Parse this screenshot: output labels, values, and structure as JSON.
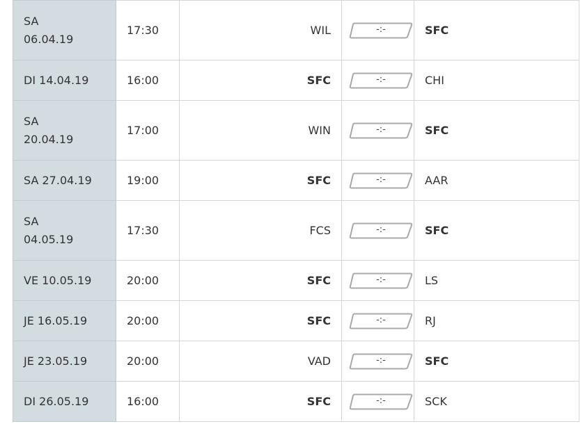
{
  "fixtures": [
    {
      "day": "SA",
      "date": "06.04.19",
      "time": "17:30",
      "home": "WIL",
      "away": "SFC",
      "score": "-:-"
    },
    {
      "day": "DI",
      "date": "14.04.19",
      "time": "16:00",
      "home": "SFC",
      "away": "CHI",
      "score": "-:-"
    },
    {
      "day": "SA",
      "date": "20.04.19",
      "time": "17:00",
      "home": "WIN",
      "away": "SFC",
      "score": "-:-"
    },
    {
      "day": "SA",
      "date": "27.04.19",
      "time": "19:00",
      "home": "SFC",
      "away": "AAR",
      "score": "-:-"
    },
    {
      "day": "SA",
      "date": "04.05.19",
      "time": "17:30",
      "home": "FCS",
      "away": "SFC",
      "score": "-:-"
    },
    {
      "day": "VE",
      "date": "10.05.19",
      "time": "20:00",
      "home": "SFC",
      "away": "LS",
      "score": "-:-"
    },
    {
      "day": "JE",
      "date": "16.05.19",
      "time": "20:00",
      "home": "SFC",
      "away": "RJ",
      "score": "-:-"
    },
    {
      "day": "JE",
      "date": "23.05.19",
      "time": "20:00",
      "home": "VAD",
      "away": "SFC",
      "score": "-:-"
    },
    {
      "day": "DI",
      "date": "26.05.19",
      "time": "16:00",
      "home": "SFC",
      "away": "SCK",
      "score": "-:-"
    }
  ],
  "highlight_team": "SFC",
  "colors": {
    "date_column_bg": "#d3dce0",
    "border": "#d6d6d6",
    "text": "#333333"
  }
}
